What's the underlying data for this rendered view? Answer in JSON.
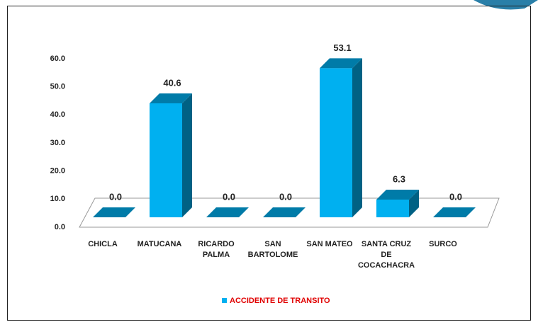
{
  "chart_data": {
    "type": "bar3d",
    "categories": [
      [
        "CHICLA"
      ],
      [
        "MATUCANA"
      ],
      [
        "RICARDO",
        "PALMA"
      ],
      [
        "SAN",
        "BARTOLOME"
      ],
      [
        "SAN MATEO"
      ],
      [
        "SANTA CRUZ",
        "DE",
        "COCACHACRA"
      ],
      [
        "SURCO"
      ]
    ],
    "series": [
      {
        "name": "ACCIDENTE DE TRANSITO",
        "color": "#00b0f0",
        "values": [
          0.0,
          40.6,
          0.0,
          0.0,
          53.1,
          6.3,
          0.0
        ],
        "value_labels": [
          "0.0",
          "40.6",
          "0.0",
          "0.0",
          "53.1",
          "6.3",
          "0.0"
        ]
      }
    ],
    "ylim": [
      0,
      60
    ],
    "yticks": [
      {
        "value": 0,
        "label": "0.0"
      },
      {
        "value": 10,
        "label": "10.0"
      },
      {
        "value": 20,
        "label": "20.0"
      },
      {
        "value": 30,
        "label": "30.0"
      },
      {
        "value": 40,
        "label": "40.0"
      },
      {
        "value": 50,
        "label": "50.0"
      },
      {
        "value": 60,
        "label": "60.0"
      }
    ],
    "legend_color": "#e00000"
  }
}
